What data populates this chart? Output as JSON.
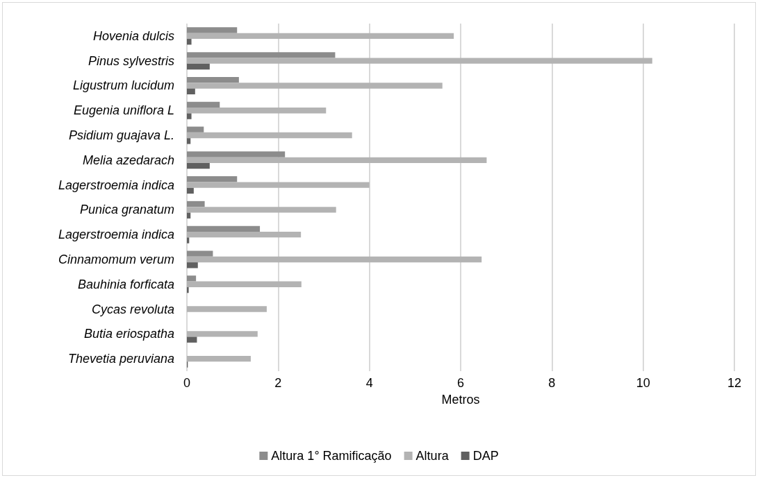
{
  "chart_data": {
    "type": "bar",
    "orientation": "horizontal",
    "xlabel": "Metros",
    "categories": [
      "Hovenia dulcis",
      "Pinus sylvestris",
      "Ligustrum lucidum",
      "Eugenia uniflora L",
      "Psidium guajava L.",
      "Melia azedarach",
      "Lagerstroemia indica",
      "Punica granatum",
      "Lagerstroemia indica",
      "Cinnamomum verum",
      "Bauhinia forficata",
      "Cycas revoluta",
      "Butia eriospatha",
      "Thevetia peruviana"
    ],
    "series": [
      {
        "name": "Altura 1° Ramificação",
        "color": "#8c8c8c",
        "values": [
          1.1,
          3.25,
          1.14,
          0.72,
          0.37,
          2.15,
          1.1,
          0.39,
          1.6,
          0.57,
          0.2,
          0,
          0,
          0
        ]
      },
      {
        "name": "Altura",
        "color": "#b3b3b3",
        "values": [
          5.85,
          10.2,
          5.6,
          3.05,
          3.62,
          6.57,
          4.0,
          3.27,
          2.5,
          6.46,
          2.51,
          1.75,
          1.55,
          1.4
        ]
      },
      {
        "name": "DAP",
        "color": "#606060",
        "values": [
          0.1,
          0.5,
          0.18,
          0.1,
          0.08,
          0.5,
          0.15,
          0.08,
          0.05,
          0.24,
          0.04,
          0,
          0.22,
          0.02
        ]
      }
    ],
    "xlim": [
      0,
      12
    ],
    "xticks": [
      0,
      2,
      4,
      6,
      8,
      10,
      12
    ],
    "grid": "x",
    "legend": "bottom"
  }
}
